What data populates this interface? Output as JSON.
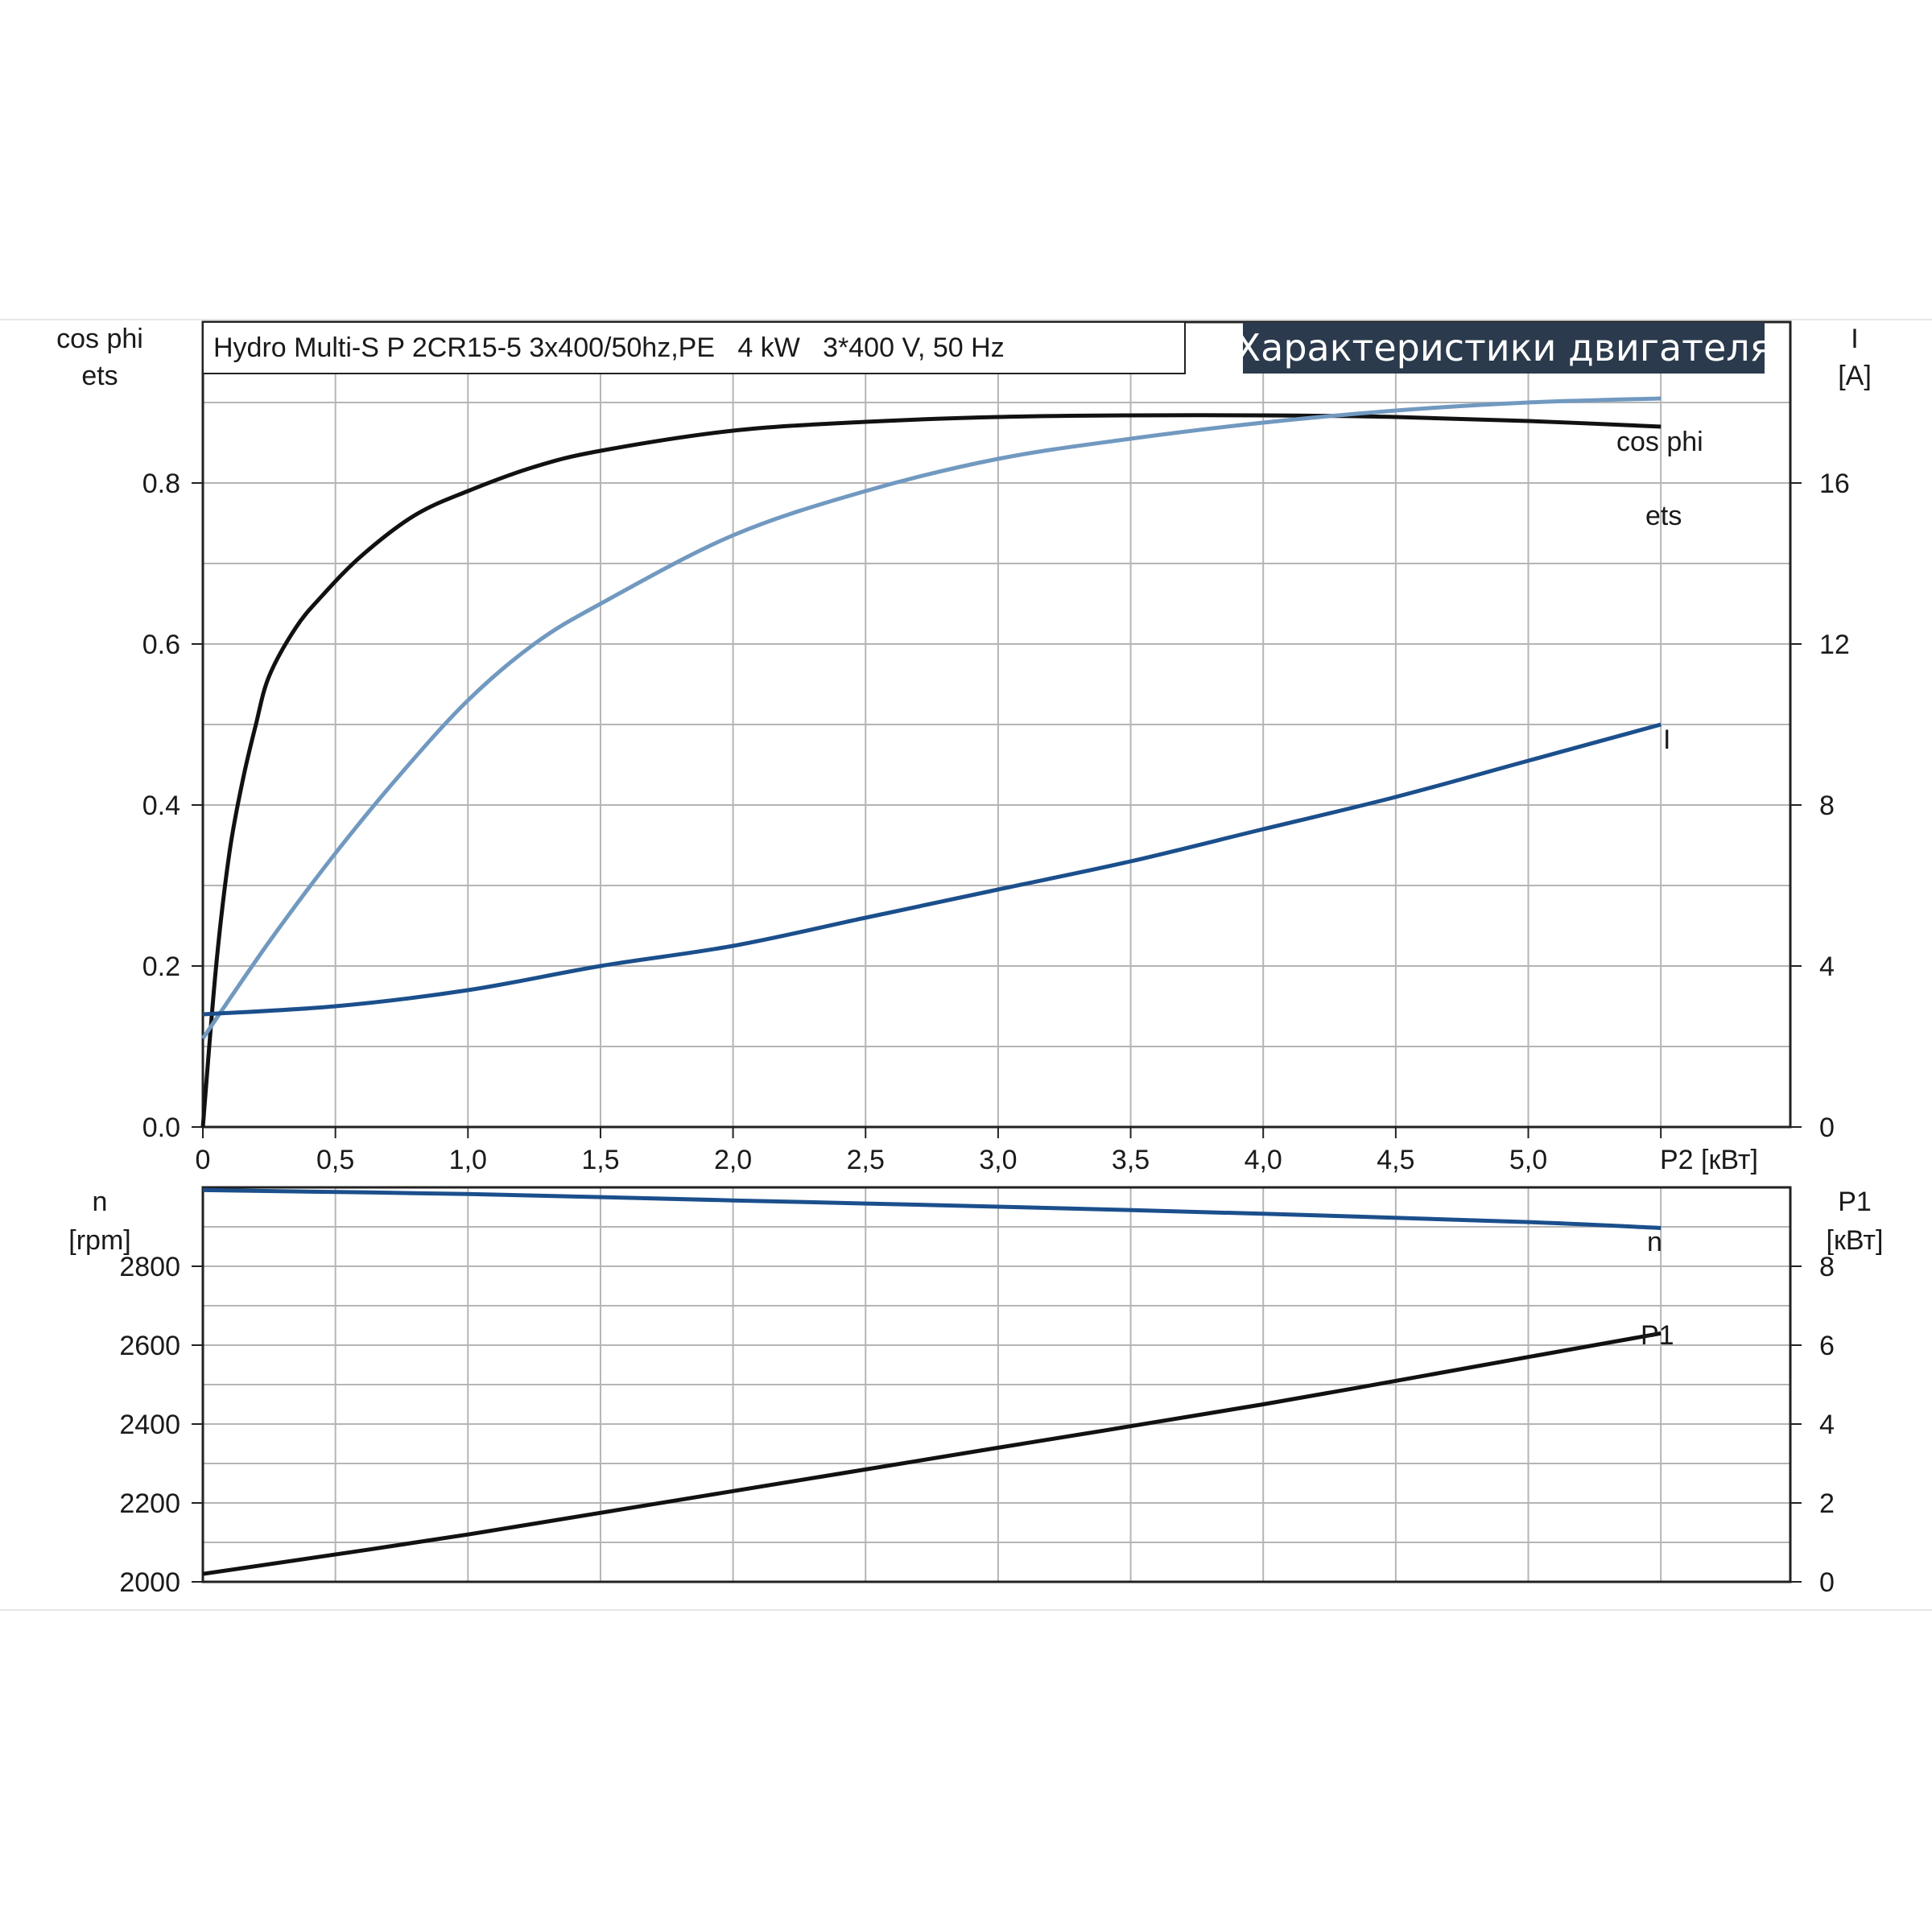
{
  "header": {
    "title": "Hydro Multi-S P 2CR15-5 3x400/50hz,PE   4 kW   3*400 V, 50 Hz",
    "banner": "Характеристики двигателя",
    "banner_color": "#2b3a4c"
  },
  "colors": {
    "ets": "#111111",
    "cos_phi": "#7199c0",
    "I": "#1b4f8c",
    "n": "#1b4f8c",
    "P1": "#111111",
    "grid": "#b5b5b5"
  },
  "chart_data": [
    {
      "type": "line",
      "xlabel": "P2 [кВт]",
      "xlim": [
        0,
        6
      ],
      "x_ticks": [
        "0",
        "0,5",
        "1,0",
        "1,5",
        "2,0",
        "2,5",
        "3,0",
        "3,5",
        "4,0",
        "4,5",
        "5,0"
      ],
      "left_axis": {
        "labels": [
          "cos phi",
          "ets"
        ],
        "ylim": [
          0,
          1.0
        ],
        "ticks": [
          "0.0",
          "0.2",
          "0.4",
          "0.6",
          "0.8"
        ]
      },
      "right_axis": {
        "labels": [
          "I",
          "[A]"
        ],
        "ylim": [
          0,
          20
        ],
        "ticks": [
          "0",
          "4",
          "8",
          "12",
          "16"
        ]
      },
      "series": [
        {
          "name": "ets",
          "axis": "left",
          "x": [
            0,
            0.05,
            0.1,
            0.15,
            0.2,
            0.25,
            0.35,
            0.45,
            0.6,
            0.8,
            1.0,
            1.25,
            1.5,
            2.0,
            2.5,
            3.0,
            3.5,
            4.0,
            4.5,
            5.0,
            5.5
          ],
          "y": [
            0,
            0.2,
            0.34,
            0.43,
            0.5,
            0.56,
            0.62,
            0.66,
            0.71,
            0.76,
            0.79,
            0.82,
            0.84,
            0.865,
            0.876,
            0.882,
            0.884,
            0.884,
            0.882,
            0.877,
            0.87
          ]
        },
        {
          "name": "cos phi",
          "axis": "left",
          "x": [
            0,
            0.25,
            0.5,
            0.75,
            1.0,
            1.25,
            1.5,
            2.0,
            2.5,
            3.0,
            3.5,
            4.0,
            4.5,
            5.0,
            5.5
          ],
          "y": [
            0.11,
            0.23,
            0.34,
            0.44,
            0.53,
            0.6,
            0.65,
            0.735,
            0.79,
            0.83,
            0.855,
            0.875,
            0.89,
            0.9,
            0.905
          ]
        },
        {
          "name": "I",
          "axis": "right",
          "x": [
            0,
            0.5,
            1.0,
            1.5,
            2.0,
            2.5,
            3.0,
            3.5,
            4.0,
            4.5,
            5.0,
            5.5
          ],
          "y": [
            2.8,
            3.0,
            3.4,
            4.0,
            4.5,
            5.2,
            5.9,
            6.6,
            7.4,
            8.2,
            9.1,
            10.0
          ]
        }
      ]
    },
    {
      "type": "line",
      "xlim": [
        0,
        6
      ],
      "left_axis": {
        "labels": [
          "n",
          "[rpm]"
        ],
        "ylim": [
          2000,
          3000
        ],
        "ticks": [
          "2000",
          "2200",
          "2400",
          "2600",
          "2800"
        ]
      },
      "right_axis": {
        "labels": [
          "P1",
          "[кВт]"
        ],
        "ylim": [
          0,
          10
        ],
        "ticks": [
          "0",
          "2",
          "4",
          "6",
          "8"
        ]
      },
      "series": [
        {
          "name": "n",
          "axis": "left",
          "x": [
            0,
            1.0,
            2.0,
            3.0,
            4.0,
            5.0,
            5.5
          ],
          "y": [
            2993,
            2983,
            2967,
            2951,
            2933,
            2912,
            2897
          ]
        },
        {
          "name": "P1",
          "axis": "right",
          "x": [
            0,
            1.0,
            2.0,
            3.0,
            4.0,
            5.0,
            5.5
          ],
          "y": [
            0.2,
            1.2,
            2.3,
            3.4,
            4.5,
            5.7,
            6.3
          ]
        }
      ]
    }
  ]
}
